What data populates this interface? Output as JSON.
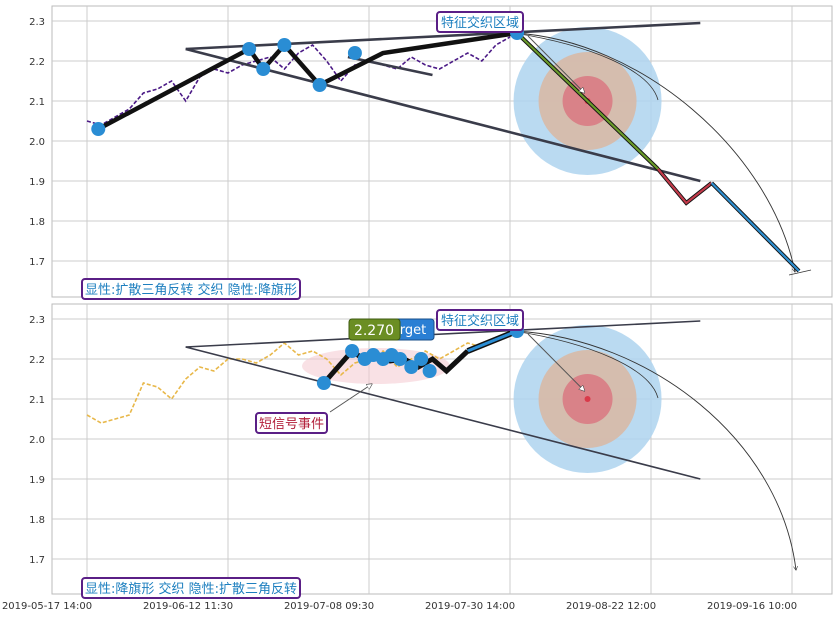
{
  "colors": {
    "grid": "#cccccc",
    "frame": "#bbbbbb",
    "trend_line": "#3a3c4a",
    "top_price": "#4b1a86",
    "bottom_price": "#e8b84a",
    "pivot_dot": "#2a8dd4",
    "target_outer": "#aed3ef",
    "target_mid": "#d8b9a6",
    "target_inner": "#d97b84",
    "label_border": "#5a1f86",
    "label_text": "#1d7fbf",
    "short_signal_text": "#b21f3a",
    "value_badge": "#6b8e23",
    "rgt_badge": "#2a7fd4"
  },
  "chart_data": [
    {
      "type": "line",
      "panel": "top",
      "x_tick_labels": [
        "2019-05-17 14:00",
        "2019-06-12 11:30",
        "2019-07-08 09:30",
        "2019-07-30 14:00",
        "2019-08-22 12:00",
        "2019-09-16 10:00"
      ],
      "y_tick_labels": [
        "1.7",
        "1.8",
        "1.9",
        "2.0",
        "2.1",
        "2.2",
        "2.3"
      ],
      "ylim": [
        1.64,
        2.34
      ],
      "xlim": [
        -0.35,
        5.3
      ],
      "grid": true,
      "price_series": {
        "x": [
          0.0,
          0.1,
          0.2,
          0.3,
          0.4,
          0.5,
          0.6,
          0.7,
          0.8,
          0.9,
          1.0,
          1.1,
          1.2,
          1.3,
          1.4,
          1.5,
          1.6,
          1.7,
          1.8,
          1.9,
          2.0,
          2.1,
          2.2,
          2.3,
          2.4,
          2.5,
          2.6,
          2.7,
          2.8,
          2.9,
          3.0
        ],
        "y": [
          2.05,
          2.04,
          2.06,
          2.08,
          2.12,
          2.13,
          2.15,
          2.1,
          2.16,
          2.18,
          2.17,
          2.19,
          2.2,
          2.21,
          2.18,
          2.22,
          2.24,
          2.2,
          2.15,
          2.19,
          2.2,
          2.19,
          2.18,
          2.21,
          2.19,
          2.18,
          2.2,
          2.22,
          2.2,
          2.24,
          2.26
        ]
      },
      "trend_lines": [
        {
          "x": [
            0.7,
            4.35
          ],
          "y": [
            2.23,
            2.295
          ]
        },
        {
          "x": [
            0.7,
            4.35
          ],
          "y": [
            2.23,
            1.9
          ]
        },
        {
          "x": [
            1.85,
            2.45
          ],
          "y": [
            2.21,
            2.165
          ]
        }
      ],
      "pattern_path": {
        "x": [
          0.08,
          1.15,
          1.25,
          1.4,
          1.65,
          2.1,
          3.05
        ],
        "y": [
          2.03,
          2.23,
          2.18,
          2.24,
          2.14,
          2.22,
          2.27
        ]
      },
      "pivots": {
        "x": [
          0.08,
          1.15,
          1.25,
          1.4,
          1.65,
          1.9,
          3.05
        ],
        "y": [
          2.03,
          2.23,
          2.18,
          2.24,
          2.14,
          2.22,
          2.27
        ]
      },
      "projection": {
        "green": {
          "x": [
            3.05,
            4.05
          ],
          "y": [
            2.27,
            1.93
          ]
        },
        "red": {
          "x": [
            4.05,
            4.25,
            4.43
          ],
          "y": [
            1.93,
            1.845,
            1.895
          ]
        },
        "blue": {
          "x": [
            4.43,
            5.05
          ],
          "y": [
            1.895,
            1.675
          ]
        }
      },
      "target_zone": {
        "x": 3.55,
        "y": 2.1
      },
      "annotations": [
        {
          "text": "特征交织区域",
          "x": 2.32,
          "y": 2.3
        },
        {
          "text": "显性:扩散三角反转 交织 隐性:降旗形"
        }
      ]
    },
    {
      "type": "line",
      "panel": "bottom",
      "x_tick_labels": [
        "2019-05-17 14:00",
        "2019-06-12 11:30",
        "2019-07-08 09:30",
        "2019-07-30 14:00",
        "2019-08-22 12:00",
        "2019-09-16 10:00"
      ],
      "y_tick_labels": [
        "1.7",
        "1.8",
        "1.9",
        "2.0",
        "2.1",
        "2.2",
        "2.3"
      ],
      "ylim": [
        1.64,
        2.34
      ],
      "xlim": [
        -0.35,
        5.3
      ],
      "grid": true,
      "price_series": {
        "x": [
          0.0,
          0.1,
          0.2,
          0.3,
          0.4,
          0.5,
          0.6,
          0.7,
          0.8,
          0.9,
          1.0,
          1.1,
          1.2,
          1.3,
          1.4,
          1.5,
          1.6,
          1.7,
          1.8,
          1.9,
          2.0,
          2.1,
          2.2,
          2.3,
          2.4,
          2.5,
          2.6,
          2.7,
          2.8,
          2.9,
          3.0
        ],
        "y": [
          2.06,
          2.04,
          2.05,
          2.06,
          2.14,
          2.13,
          2.1,
          2.15,
          2.18,
          2.17,
          2.2,
          2.2,
          2.19,
          2.21,
          2.24,
          2.21,
          2.22,
          2.2,
          2.16,
          2.19,
          2.2,
          2.22,
          2.18,
          2.2,
          2.22,
          2.2,
          2.22,
          2.24,
          2.23,
          2.25,
          2.26
        ]
      },
      "trend_lines": [
        {
          "x": [
            0.7,
            4.35
          ],
          "y": [
            2.23,
            2.295
          ]
        },
        {
          "x": [
            0.7,
            4.35
          ],
          "y": [
            2.23,
            1.9
          ]
        }
      ],
      "pattern_path": {
        "x": [
          1.68,
          1.88,
          1.98,
          2.05,
          2.15,
          2.25,
          2.35,
          2.45,
          2.55,
          2.7,
          3.05
        ],
        "y": [
          2.14,
          2.22,
          2.195,
          2.205,
          2.195,
          2.2,
          2.18,
          2.2,
          2.17,
          2.22,
          2.27
        ]
      },
      "pivots": {
        "x": [
          1.68,
          1.88,
          1.97,
          2.03,
          2.1,
          2.16,
          2.22,
          2.3,
          2.37,
          2.43,
          3.05
        ],
        "y": [
          2.14,
          2.22,
          2.2,
          2.21,
          2.2,
          2.21,
          2.2,
          2.18,
          2.2,
          2.17,
          2.27
        ]
      },
      "target_zone": {
        "x": 3.55,
        "y": 2.1
      },
      "annotations": [
        {
          "text": "特征交织区域",
          "x": 2.32,
          "y": 2.3
        },
        {
          "text": "2.270"
        },
        {
          "text": "rget"
        },
        {
          "text": "短信号事件"
        },
        {
          "text": "显性:降旗形 交织 隐性:扩散三角反转"
        }
      ]
    }
  ]
}
